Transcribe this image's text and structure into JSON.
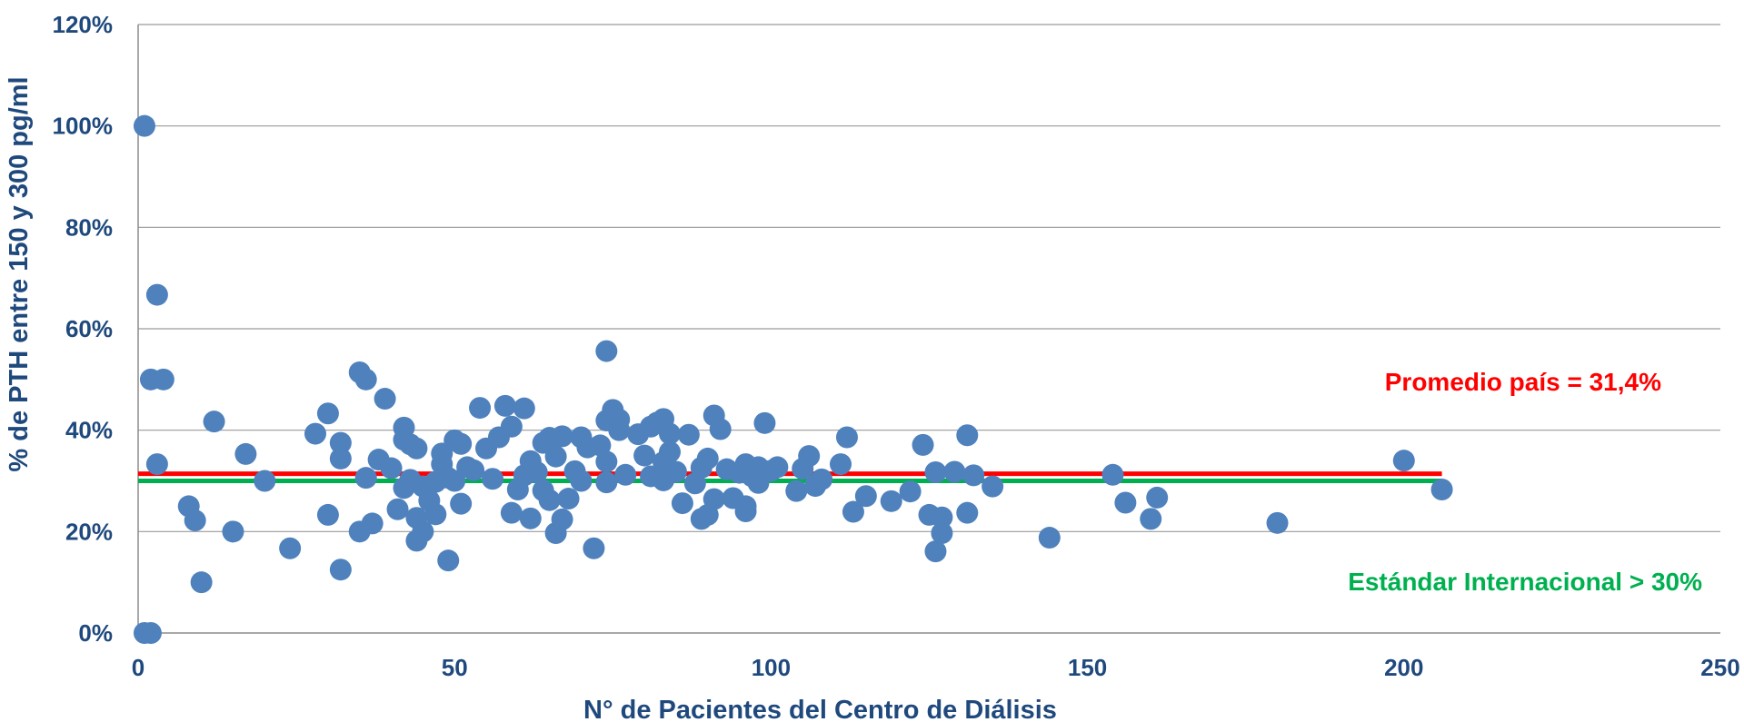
{
  "chart_data": {
    "type": "scatter",
    "xlabel": "N° de Pacientes del Centro de Diálisis",
    "ylabel": "% de PTH entre 150 y 300 pg/ml",
    "xlim": [
      0,
      250
    ],
    "ylim": [
      0,
      1.2
    ],
    "x_ticks": [
      0,
      50,
      100,
      150,
      200,
      250
    ],
    "x_tick_labels": [
      "0",
      "50",
      "100",
      "150",
      "200",
      "250"
    ],
    "y_ticks": [
      0,
      0.2,
      0.4,
      0.6,
      0.8,
      1.0,
      1.2
    ],
    "y_tick_labels": [
      "0%",
      "20%",
      "40%",
      "60%",
      "80%",
      "100%",
      "120%"
    ],
    "grid": "horizontal",
    "point_color": "#4f81bd",
    "reference_lines": [
      {
        "label": "Promedio país = 31,4%",
        "y": 0.314,
        "x_range": [
          0,
          206
        ],
        "color": "#ff0000"
      },
      {
        "label": "Estándar Internacional > 30%",
        "y": 0.3,
        "x_range": [
          0,
          206
        ],
        "color": "#00b050"
      }
    ],
    "series": [
      {
        "points": [
          [
            1,
            1.0
          ],
          [
            1,
            0.0
          ],
          [
            2,
            0.0
          ],
          [
            2,
            0.5
          ],
          [
            3,
            0.667
          ],
          [
            3,
            0.333
          ],
          [
            4,
            0.5
          ],
          [
            8,
            0.25
          ],
          [
            9,
            0.222
          ],
          [
            10,
            0.1
          ],
          [
            12,
            0.417
          ],
          [
            15,
            0.2
          ],
          [
            17,
            0.353
          ],
          [
            20,
            0.3
          ],
          [
            24,
            0.167
          ],
          [
            28,
            0.393
          ],
          [
            30,
            0.433
          ],
          [
            30,
            0.233
          ],
          [
            32,
            0.375
          ],
          [
            32,
            0.344
          ],
          [
            32,
            0.125
          ],
          [
            35,
            0.514
          ],
          [
            35,
            0.2
          ],
          [
            36,
            0.5
          ],
          [
            36,
            0.306
          ],
          [
            37,
            0.216
          ],
          [
            38,
            0.342
          ],
          [
            39,
            0.462
          ],
          [
            40,
            0.325
          ],
          [
            41,
            0.244
          ],
          [
            42,
            0.405
          ],
          [
            42,
            0.381
          ],
          [
            42,
            0.286
          ],
          [
            43,
            0.372
          ],
          [
            43,
            0.302
          ],
          [
            44,
            0.364
          ],
          [
            44,
            0.227
          ],
          [
            44,
            0.182
          ],
          [
            45,
            0.2
          ],
          [
            45,
            0.289
          ],
          [
            46,
            0.261
          ],
          [
            47,
            0.234
          ],
          [
            47,
            0.298
          ],
          [
            48,
            0.354
          ],
          [
            48,
            0.333
          ],
          [
            49,
            0.143
          ],
          [
            49,
            0.306
          ],
          [
            50,
            0.38
          ],
          [
            50,
            0.3
          ],
          [
            51,
            0.373
          ],
          [
            51,
            0.255
          ],
          [
            52,
            0.327
          ],
          [
            53,
            0.321
          ],
          [
            54,
            0.444
          ],
          [
            55,
            0.364
          ],
          [
            56,
            0.304
          ],
          [
            57,
            0.386
          ],
          [
            58,
            0.448
          ],
          [
            59,
            0.407
          ],
          [
            59,
            0.237
          ],
          [
            60,
            0.283
          ],
          [
            61,
            0.443
          ],
          [
            61,
            0.311
          ],
          [
            62,
            0.226
          ],
          [
            62,
            0.339
          ],
          [
            63,
            0.317
          ],
          [
            64,
            0.375
          ],
          [
            64,
            0.281
          ],
          [
            65,
            0.385
          ],
          [
            65,
            0.262
          ],
          [
            66,
            0.197
          ],
          [
            66,
            0.348
          ],
          [
            67,
            0.388
          ],
          [
            67,
            0.224
          ],
          [
            68,
            0.265
          ],
          [
            69,
            0.319
          ],
          [
            70,
            0.386
          ],
          [
            70,
            0.3
          ],
          [
            71,
            0.366
          ],
          [
            72,
            0.167
          ],
          [
            73,
            0.37
          ],
          [
            74,
            0.556
          ],
          [
            74,
            0.419
          ],
          [
            74,
            0.338
          ],
          [
            74,
            0.297
          ],
          [
            75,
            0.44
          ],
          [
            76,
            0.4
          ],
          [
            76,
            0.421
          ],
          [
            77,
            0.312
          ],
          [
            79,
            0.392
          ],
          [
            80,
            0.35
          ],
          [
            81,
            0.407
          ],
          [
            81,
            0.309
          ],
          [
            82,
            0.415
          ],
          [
            83,
            0.422
          ],
          [
            83,
            0.337
          ],
          [
            83,
            0.301
          ],
          [
            84,
            0.393
          ],
          [
            84,
            0.357
          ],
          [
            85,
            0.318
          ],
          [
            86,
            0.256
          ],
          [
            87,
            0.391
          ],
          [
            88,
            0.295
          ],
          [
            89,
            0.326
          ],
          [
            89,
            0.225
          ],
          [
            90,
            0.344
          ],
          [
            90,
            0.233
          ],
          [
            91,
            0.429
          ],
          [
            91,
            0.264
          ],
          [
            92,
            0.402
          ],
          [
            93,
            0.323
          ],
          [
            94,
            0.266
          ],
          [
            95,
            0.316
          ],
          [
            96,
            0.333
          ],
          [
            96,
            0.25
          ],
          [
            96,
            0.24
          ],
          [
            97,
            0.309
          ],
          [
            98,
            0.327
          ],
          [
            98,
            0.296
          ],
          [
            99,
            0.414
          ],
          [
            100,
            0.32
          ],
          [
            101,
            0.327
          ],
          [
            104,
            0.28
          ],
          [
            105,
            0.324
          ],
          [
            106,
            0.349
          ],
          [
            107,
            0.29
          ],
          [
            108,
            0.303
          ],
          [
            111,
            0.333
          ],
          [
            112,
            0.386
          ],
          [
            113,
            0.239
          ],
          [
            115,
            0.27
          ],
          [
            119,
            0.26
          ],
          [
            122,
            0.279
          ],
          [
            124,
            0.371
          ],
          [
            125,
            0.233
          ],
          [
            126,
            0.161
          ],
          [
            126,
            0.317
          ],
          [
            127,
            0.228
          ],
          [
            127,
            0.197
          ],
          [
            129,
            0.318
          ],
          [
            131,
            0.39
          ],
          [
            131,
            0.237
          ],
          [
            132,
            0.311
          ],
          [
            135,
            0.289
          ],
          [
            144,
            0.188
          ],
          [
            154,
            0.312
          ],
          [
            156,
            0.257
          ],
          [
            160,
            0.225
          ],
          [
            161,
            0.267
          ],
          [
            180,
            0.217
          ],
          [
            200,
            0.34
          ],
          [
            206,
            0.283
          ]
        ]
      }
    ]
  }
}
